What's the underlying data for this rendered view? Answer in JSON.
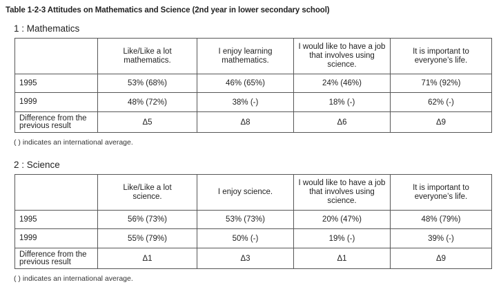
{
  "title": "Table 1-2-3   Attitudes on Mathematics and Science (2nd year in lower secondary school)",
  "tables": [
    {
      "section": "1 : Mathematics",
      "headers": [
        "",
        "Like/Like a lot\nmathematics.",
        "I enjoy learning\nmathematics.",
        "I would like to have a job\nthat involves using science.",
        "It is important to\neveryone’s life."
      ],
      "rows": [
        {
          "label": "1995",
          "cells": [
            "53% (68%)",
            "46% (65%)",
            "24% (46%)",
            "71% (92%)"
          ]
        },
        {
          "label": "1999",
          "cells": [
            "48% (72%)",
            "38% (-)",
            "18% (-)",
            "62% (-)"
          ]
        },
        {
          "label": "Difference from the\nprevious result",
          "cells": [
            "Δ5",
            "Δ8",
            "Δ6",
            "Δ9"
          ]
        }
      ],
      "note": "( ) indicates an international average."
    },
    {
      "section": "2 : Science",
      "headers": [
        "",
        "Like/Like a lot\nscience.",
        "I enjoy science.",
        "I would like to have a job\nthat involves using science.",
        "It is important to\neveryone’s life."
      ],
      "rows": [
        {
          "label": "1995",
          "cells": [
            "56% (73%)",
            "53% (73%)",
            "20% (47%)",
            "48% (79%)"
          ]
        },
        {
          "label": "1999",
          "cells": [
            "55% (79%)",
            "50% (-)",
            "19% (-)",
            "39% (-)"
          ]
        },
        {
          "label": "Difference from the\nprevious result",
          "cells": [
            "Δ1",
            "Δ3",
            "Δ1",
            "Δ9"
          ]
        }
      ],
      "note": "( ) indicates an international average."
    }
  ]
}
